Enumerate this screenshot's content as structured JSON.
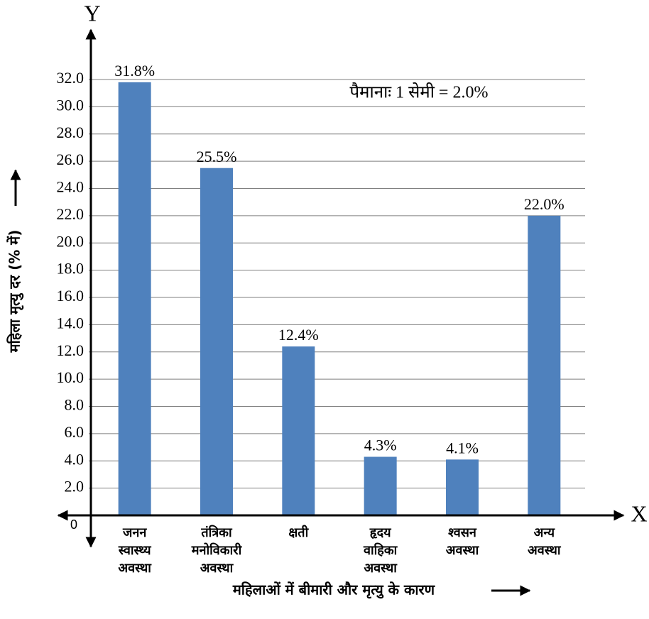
{
  "chart_data": {
    "type": "bar",
    "y_axis_name": "Y",
    "x_axis_name": "X",
    "ylabel": "महिला मृत्यु दर (% में)",
    "xlabel": "महिलाओं में बीमारी और मृत्यु के कारण",
    "annotation": "पैमानाः 1 सेमी = 2.0%",
    "categories": [
      [
        "जनन",
        "स्वास्थ्य",
        "अवस्था"
      ],
      [
        "तंत्रिका",
        "मनोविकारी",
        "अवस्था"
      ],
      [
        "क्षती"
      ],
      [
        "हृदय",
        "वाहिका",
        "अवस्था"
      ],
      [
        "श्वसन",
        "अवस्था"
      ],
      [
        "अन्य",
        "अवस्था"
      ]
    ],
    "values": [
      31.8,
      25.5,
      12.4,
      4.3,
      4.1,
      22.0
    ],
    "value_labels": [
      "31.8%",
      "25.5%",
      "12.4%",
      "4.3%",
      "4.1%",
      "22.0%"
    ],
    "color": "#4f81bd",
    "ylim": [
      0,
      32
    ],
    "yticks": [
      0,
      {
        "value": 2,
        "label": "2.0"
      },
      {
        "value": 4,
        "label": "4.0"
      },
      {
        "value": 6,
        "label": "6.0"
      },
      {
        "value": 8,
        "label": "8.0"
      },
      {
        "value": 10,
        "label": "10.0"
      },
      {
        "value": 12,
        "label": "12.0"
      },
      {
        "value": 14,
        "label": "14.0"
      },
      {
        "value": 16,
        "label": "16.0"
      },
      {
        "value": 18,
        "label": "18.0"
      },
      {
        "value": 20,
        "label": "20.0"
      },
      {
        "value": 22,
        "label": "22.0"
      },
      {
        "value": 24,
        "label": "24.0"
      },
      {
        "value": 26,
        "label": "26.0"
      },
      {
        "value": 28,
        "label": "28.0"
      },
      {
        "value": 30,
        "label": "30.0"
      },
      {
        "value": 32,
        "label": "32.0"
      }
    ],
    "grid": true
  }
}
